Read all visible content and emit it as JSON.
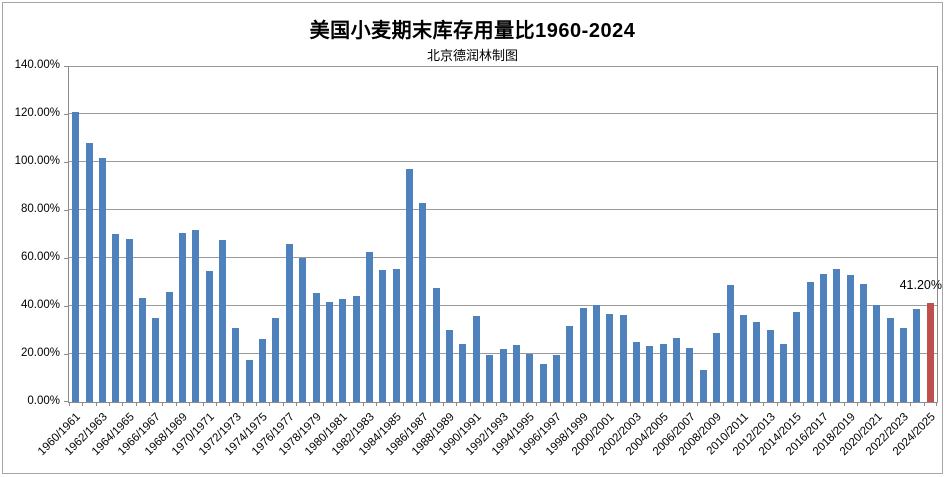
{
  "chart_data": {
    "type": "bar",
    "title": "美国小麦期末库存用量比1960-2024",
    "subtitle": "北京德润林制图",
    "ylabel": "",
    "xlabel": "",
    "ylim": [
      0,
      140
    ],
    "ytick_step": 20,
    "ytick_labels": [
      "0.00%",
      "20.00%",
      "40.00%",
      "60.00%",
      "80.00%",
      "100.00%",
      "120.00%",
      "140.00%"
    ],
    "xtick_every": 2,
    "grid": true,
    "legend": "none",
    "bar_color": "#4F81BD",
    "highlight_color": "#C0504D",
    "grid_color": "#9b9b9b",
    "axis_color": "#8c8c8c",
    "highlight_index": 64,
    "highlight_label": "41.20%",
    "categories": [
      "1960/1961",
      "1961/1962",
      "1962/1963",
      "1963/1964",
      "1964/1965",
      "1965/1966",
      "1966/1967",
      "1967/1968",
      "1968/1969",
      "1969/1970",
      "1970/1971",
      "1971/1972",
      "1972/1973",
      "1973/1974",
      "1974/1975",
      "1975/1976",
      "1976/1977",
      "1977/1978",
      "1978/1979",
      "1979/1980",
      "1980/1981",
      "1981/1982",
      "1982/1983",
      "1983/1984",
      "1984/1985",
      "1985/1986",
      "1986/1987",
      "1987/1988",
      "1988/1989",
      "1989/1990",
      "1990/1991",
      "1991/1992",
      "1992/1993",
      "1993/1994",
      "1994/1995",
      "1995/1996",
      "1996/1997",
      "1997/1998",
      "1998/1999",
      "1999/2000",
      "2000/2001",
      "2001/2002",
      "2002/2003",
      "2003/2004",
      "2004/2005",
      "2005/2006",
      "2006/2007",
      "2007/2008",
      "2008/2009",
      "2009/2010",
      "2010/2011",
      "2011/2012",
      "2012/2013",
      "2013/2014",
      "2014/2015",
      "2015/2016",
      "2016/2017",
      "2017/2018",
      "2018/2019",
      "2019/2020",
      "2020/2021",
      "2021/2022",
      "2022/2023",
      "2023/2024",
      "2024/2025"
    ],
    "values": [
      120.8,
      107.8,
      101.5,
      69.9,
      67.8,
      43.2,
      35.1,
      45.8,
      70.6,
      71.7,
      54.6,
      67.5,
      30.7,
      17.5,
      26.1,
      35.0,
      65.7,
      59.8,
      45.6,
      41.8,
      43.1,
      44.2,
      62.6,
      55.0,
      55.5,
      97.0,
      83.0,
      47.4,
      29.9,
      24.0,
      35.8,
      19.6,
      21.9,
      23.6,
      20.1,
      16.0,
      19.6,
      31.7,
      39.0,
      40.3,
      36.8,
      36.3,
      25.0,
      23.3,
      24.0,
      26.5,
      22.6,
      13.2,
      28.6,
      48.8,
      36.3,
      33.3,
      30.0,
      24.3,
      37.5,
      50.1,
      53.5,
      55.3,
      52.8,
      49.3,
      40.4,
      35.1,
      30.7,
      38.6,
      41.2
    ]
  }
}
